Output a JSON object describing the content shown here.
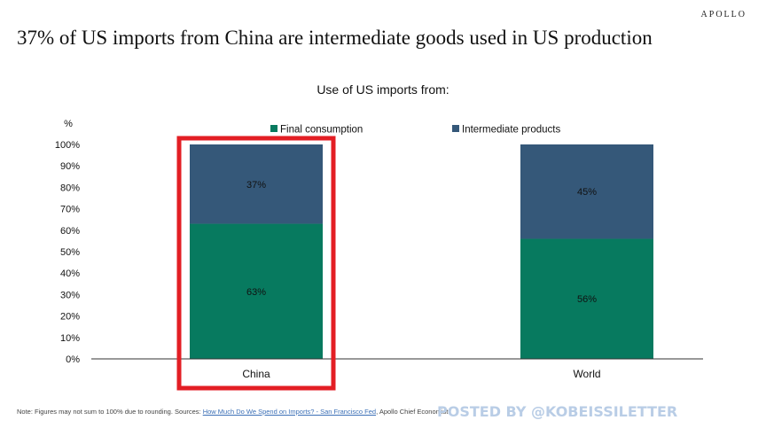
{
  "brand": "APOLLO",
  "title": "37% of US imports from China are intermediate goods used in US production",
  "chart_data": {
    "type": "bar",
    "stacked": true,
    "title": "Use of US imports from:",
    "ylabel": "%",
    "ylim": [
      0,
      100
    ],
    "yticks": [
      "0%",
      "10%",
      "20%",
      "30%",
      "40%",
      "50%",
      "60%",
      "70%",
      "80%",
      "90%",
      "100%"
    ],
    "categories": [
      "China",
      "World"
    ],
    "series": [
      {
        "name": "Final consumption",
        "color": "#077a5f",
        "values": [
          63,
          56
        ],
        "labels": [
          "63%",
          "56%"
        ]
      },
      {
        "name": "Intermediate products",
        "color": "#355879",
        "values": [
          37,
          45
        ],
        "labels": [
          "37%",
          "45%"
        ]
      }
    ],
    "legend": "top",
    "grid": false,
    "highlight": {
      "category": "China",
      "color": "#e31e24"
    }
  },
  "note": {
    "prefix": "Note: Figures may not sum to 100% due to rounding. Sources: ",
    "link": "How Much Do We Spend on Imports? - San Francisco Fed",
    "suffix": ", Apollo Chief Economist"
  },
  "watermark": "POSTED BY @KOBEISSILETTER"
}
